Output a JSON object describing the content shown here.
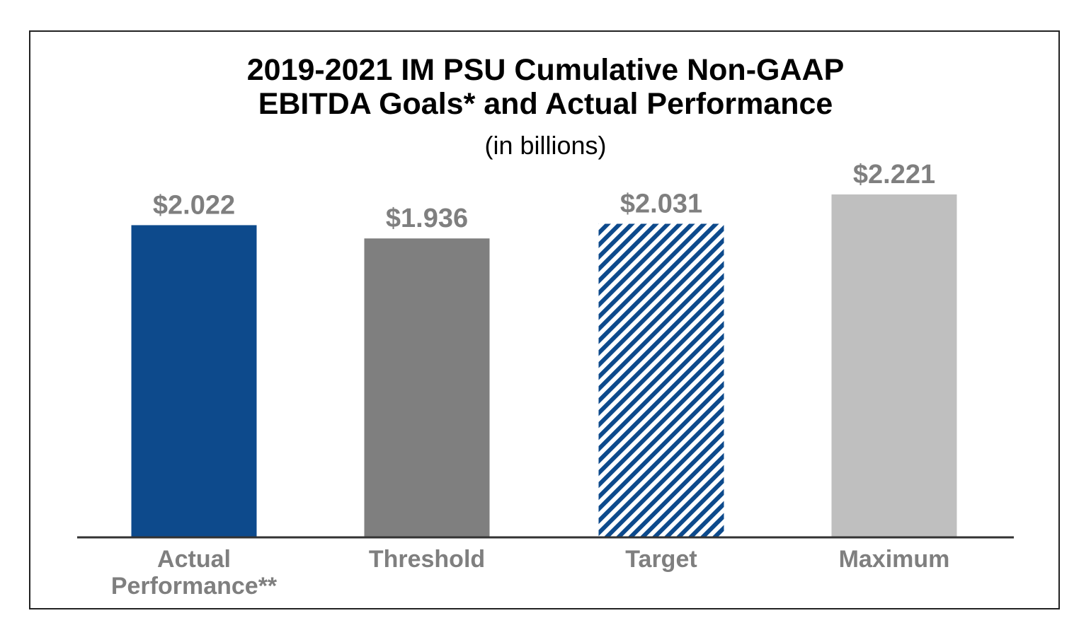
{
  "chart_data": {
    "type": "bar",
    "title_lines": [
      "2019-2021 IM PSU Cumulative Non-GAAP",
      "EBITDA Goals* and Actual Performance"
    ],
    "subtitle": "(in billions)",
    "categories": [
      [
        "Actual",
        "Performance**"
      ],
      [
        "Threshold"
      ],
      [
        "Target"
      ],
      [
        "Maximum"
      ]
    ],
    "values": [
      2.022,
      1.936,
      2.031,
      2.221
    ],
    "value_labels": [
      "$2.022",
      "$1.936",
      "$2.031",
      "$2.221"
    ],
    "bar_styles": [
      "solid",
      "solid",
      "hatched",
      "solid"
    ],
    "bar_colors": [
      "#0d4a8c",
      "#7f7f7f",
      "#0d4a8c",
      "#bfbfbf"
    ],
    "label_color": "#7f7f7f",
    "axis_color": "#333333",
    "ylim": [
      0,
      2.221
    ],
    "grid": false,
    "legend": "none"
  }
}
